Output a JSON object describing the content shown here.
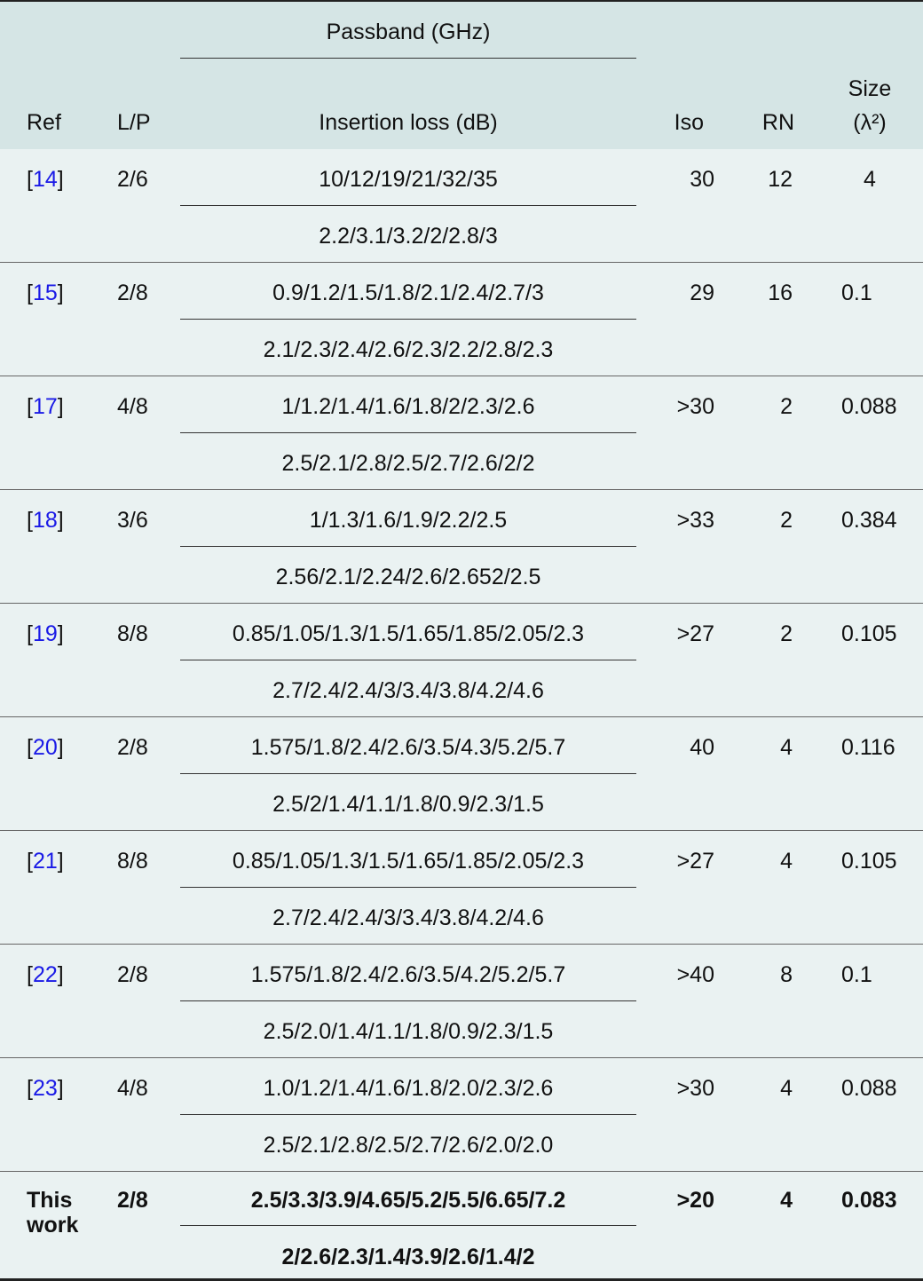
{
  "header": {
    "ref": "Ref",
    "lp": "L/P",
    "passband": "Passband (GHz)",
    "insertion_loss": "Insertion loss (dB)",
    "iso": "Iso",
    "rn": "RN",
    "size_line1": "Size",
    "size_line2": "(λ²)"
  },
  "rows": [
    {
      "ref": "14",
      "lp": "2/6",
      "passband": "10/12/19/21/32/35",
      "loss": "2.2/3.1/3.2/2/2.8/3",
      "iso": "30",
      "rn": "12",
      "size": "4"
    },
    {
      "ref": "15",
      "lp": "2/8",
      "passband": "0.9/1.2/1.5/1.8/2.1/2.4/2.7/3",
      "loss": "2.1/2.3/2.4/2.6/2.3/2.2/2.8/2.3",
      "iso": "29",
      "rn": "16",
      "size": "0.1"
    },
    {
      "ref": "17",
      "lp": "4/8",
      "passband": "1/1.2/1.4/1.6/1.8/2/2.3/2.6",
      "loss": "2.5/2.1/2.8/2.5/2.7/2.6/2/2",
      "iso": ">30",
      "rn": "2",
      "size": "0.088"
    },
    {
      "ref": "18",
      "lp": "3/6",
      "passband": "1/1.3/1.6/1.9/2.2/2.5",
      "loss": "2.56/2.1/2.24/2.6/2.652/2.5",
      "iso": ">33",
      "rn": "2",
      "size": "0.384"
    },
    {
      "ref": "19",
      "lp": "8/8",
      "passband": "0.85/1.05/1.3/1.5/1.65/1.85/2.05/2.3",
      "loss": "2.7/2.4/2.4/3/3.4/3.8/4.2/4.6",
      "iso": ">27",
      "rn": "2",
      "size": "0.105"
    },
    {
      "ref": "20",
      "lp": "2/8",
      "passband": "1.575/1.8/2.4/2.6/3.5/4.3/5.2/5.7",
      "loss": "2.5/2/1.4/1.1/1.8/0.9/2.3/1.5",
      "iso": "40",
      "rn": "4",
      "size": "0.116"
    },
    {
      "ref": "21",
      "lp": "8/8",
      "passband": "0.85/1.05/1.3/1.5/1.65/1.85/2.05/2.3",
      "loss": "2.7/2.4/2.4/3/3.4/3.8/4.2/4.6",
      "iso": ">27",
      "rn": "4",
      "size": "0.105"
    },
    {
      "ref": "22",
      "lp": "2/8",
      "passband": "1.575/1.8/2.4/2.6/3.5/4.2/5.2/5.7",
      "loss": "2.5/2.0/1.4/1.1/1.8/0.9/2.3/1.5",
      "iso": ">40",
      "rn": "8",
      "size": "0.1"
    },
    {
      "ref": "23",
      "lp": "4/8",
      "passband": "1.0/1.2/1.4/1.6/1.8/2.0/2.3/2.6",
      "loss": "2.5/2.1/2.8/2.5/2.7/2.6/2.0/2.0",
      "iso": ">30",
      "rn": "4",
      "size": "0.088"
    }
  ],
  "this_work": {
    "ref_line1": "This",
    "ref_line2": "work",
    "lp": "2/8",
    "passband": "2.5/3.3/3.9/4.65/5.2/5.5/6.65/7.2",
    "loss": "2/2.6/2.3/1.4/3.9/2.6/1.4/2",
    "iso": ">20",
    "rn": "4",
    "size": "0.083"
  },
  "colors": {
    "header_bg": "#d5e5e5",
    "body_bg": "#eaf2f2",
    "ref_link": "#1a1ae6"
  }
}
